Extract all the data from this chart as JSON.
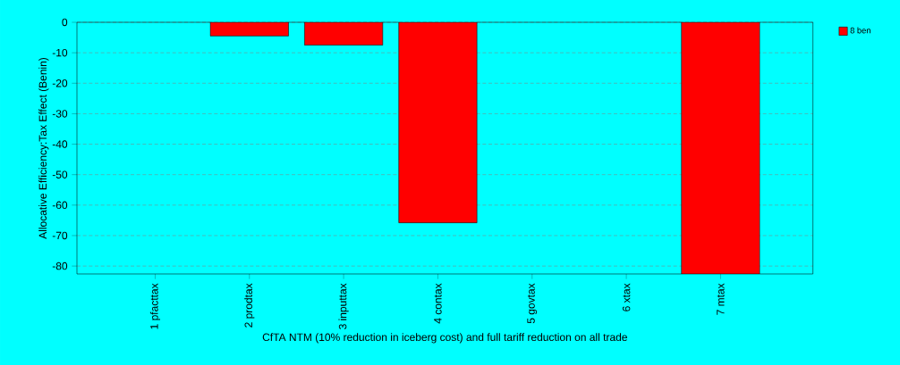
{
  "chart_data": {
    "type": "bar",
    "xlabel": "CfTA NTM (10% reduction in iceberg cost) and full tariff reduction on all trade",
    "ylabel": "Allocative Efficiency:Tax Effect (Benin)",
    "categories": [
      "1 pfacttax",
      "2 prodtax",
      "3 inputtax",
      "4 contax",
      "5 govtax",
      "6 xtax",
      "7 mtax"
    ],
    "series": [
      {
        "name": "8 ben",
        "color": "#ff0000",
        "values": [
          0,
          -4.5,
          -7.5,
          -65.8,
          0,
          0,
          -82.6
        ]
      }
    ],
    "ylim": [
      -82.6,
      0
    ],
    "yticks": [
      0,
      -10,
      -20,
      -30,
      -40,
      -50,
      -60,
      -70,
      -80
    ],
    "grid": "y",
    "legend": "top right"
  }
}
